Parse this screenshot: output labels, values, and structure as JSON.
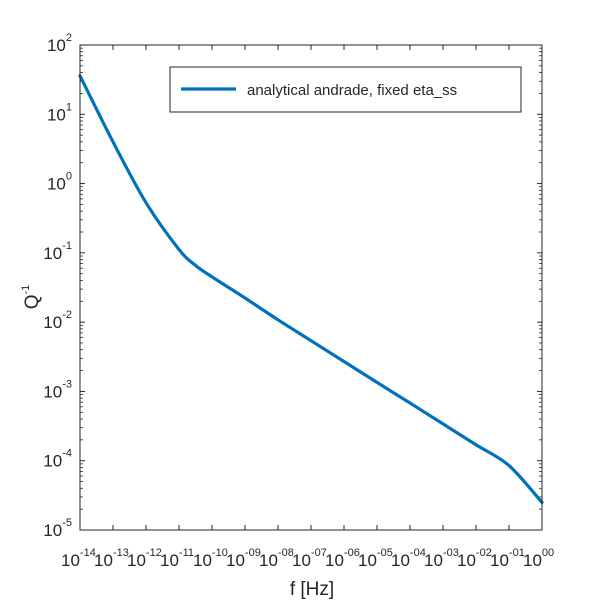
{
  "chart_data": {
    "type": "line",
    "title": "",
    "xlabel": "f [Hz]",
    "ylabel": "Q",
    "ylabel_superscript": "-1",
    "xscale": "log",
    "yscale": "log",
    "xlim": [
      1e-14,
      1
    ],
    "ylim": [
      1e-05,
      100
    ],
    "grid": false,
    "legend_position": "top-right",
    "x_tick_exponents": [
      "-14",
      "-13",
      "-12",
      "-11",
      "-10",
      "-09",
      "-08",
      "-07",
      "-06",
      "-05",
      "-04",
      "-03",
      "-02",
      "-01",
      "00"
    ],
    "y_tick_exponents": [
      "-5",
      "-4",
      "-3",
      "-2",
      "-1",
      "0",
      "1",
      "2"
    ],
    "series": [
      {
        "name": "analytical andrade, fixed eta_ss",
        "color": "#0072BD",
        "x": [
          1e-14,
          1e-13,
          1e-12,
          1e-11,
          3.16e-11,
          1e-10,
          1e-09,
          1e-08,
          1e-07,
          1e-06,
          1e-05,
          0.0001,
          0.001,
          0.01,
          0.1,
          1
        ],
        "y": [
          36,
          4.0,
          0.53,
          0.112,
          0.066,
          0.045,
          0.0223,
          0.0108,
          0.0054,
          0.0027,
          0.00135,
          0.00068,
          0.00034,
          0.00017,
          8.5e-05,
          2.5e-05
        ]
      }
    ]
  }
}
